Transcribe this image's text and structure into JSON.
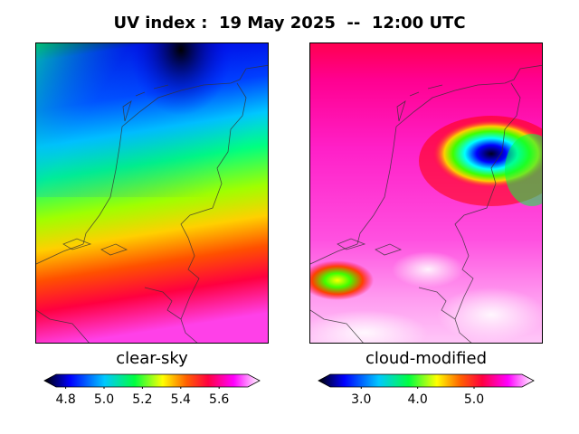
{
  "title": "UV index :  19 May 2025  --  12:00 UTC",
  "panels": {
    "left": {
      "label": "clear-sky"
    },
    "right": {
      "label": "cloud-modified"
    }
  },
  "colorbars": {
    "left": {
      "min": 4.75,
      "max": 5.75,
      "ticks": [
        "4.8",
        "5.0",
        "5.2",
        "5.4",
        "5.6"
      ],
      "tick_values": [
        4.8,
        5.0,
        5.2,
        5.4,
        5.6
      ]
    },
    "right": {
      "min": 2.45,
      "max": 5.85,
      "ticks": [
        "3.0",
        "4.0",
        "5.0"
      ],
      "tick_values": [
        3.0,
        4.0,
        5.0
      ]
    }
  },
  "colors": {
    "scale": [
      "#000000",
      "#0000ff",
      "#00ffff",
      "#00ff00",
      "#ffff00",
      "#ff8000",
      "#ff0000",
      "#ff00ff",
      "#ffffff"
    ]
  }
}
